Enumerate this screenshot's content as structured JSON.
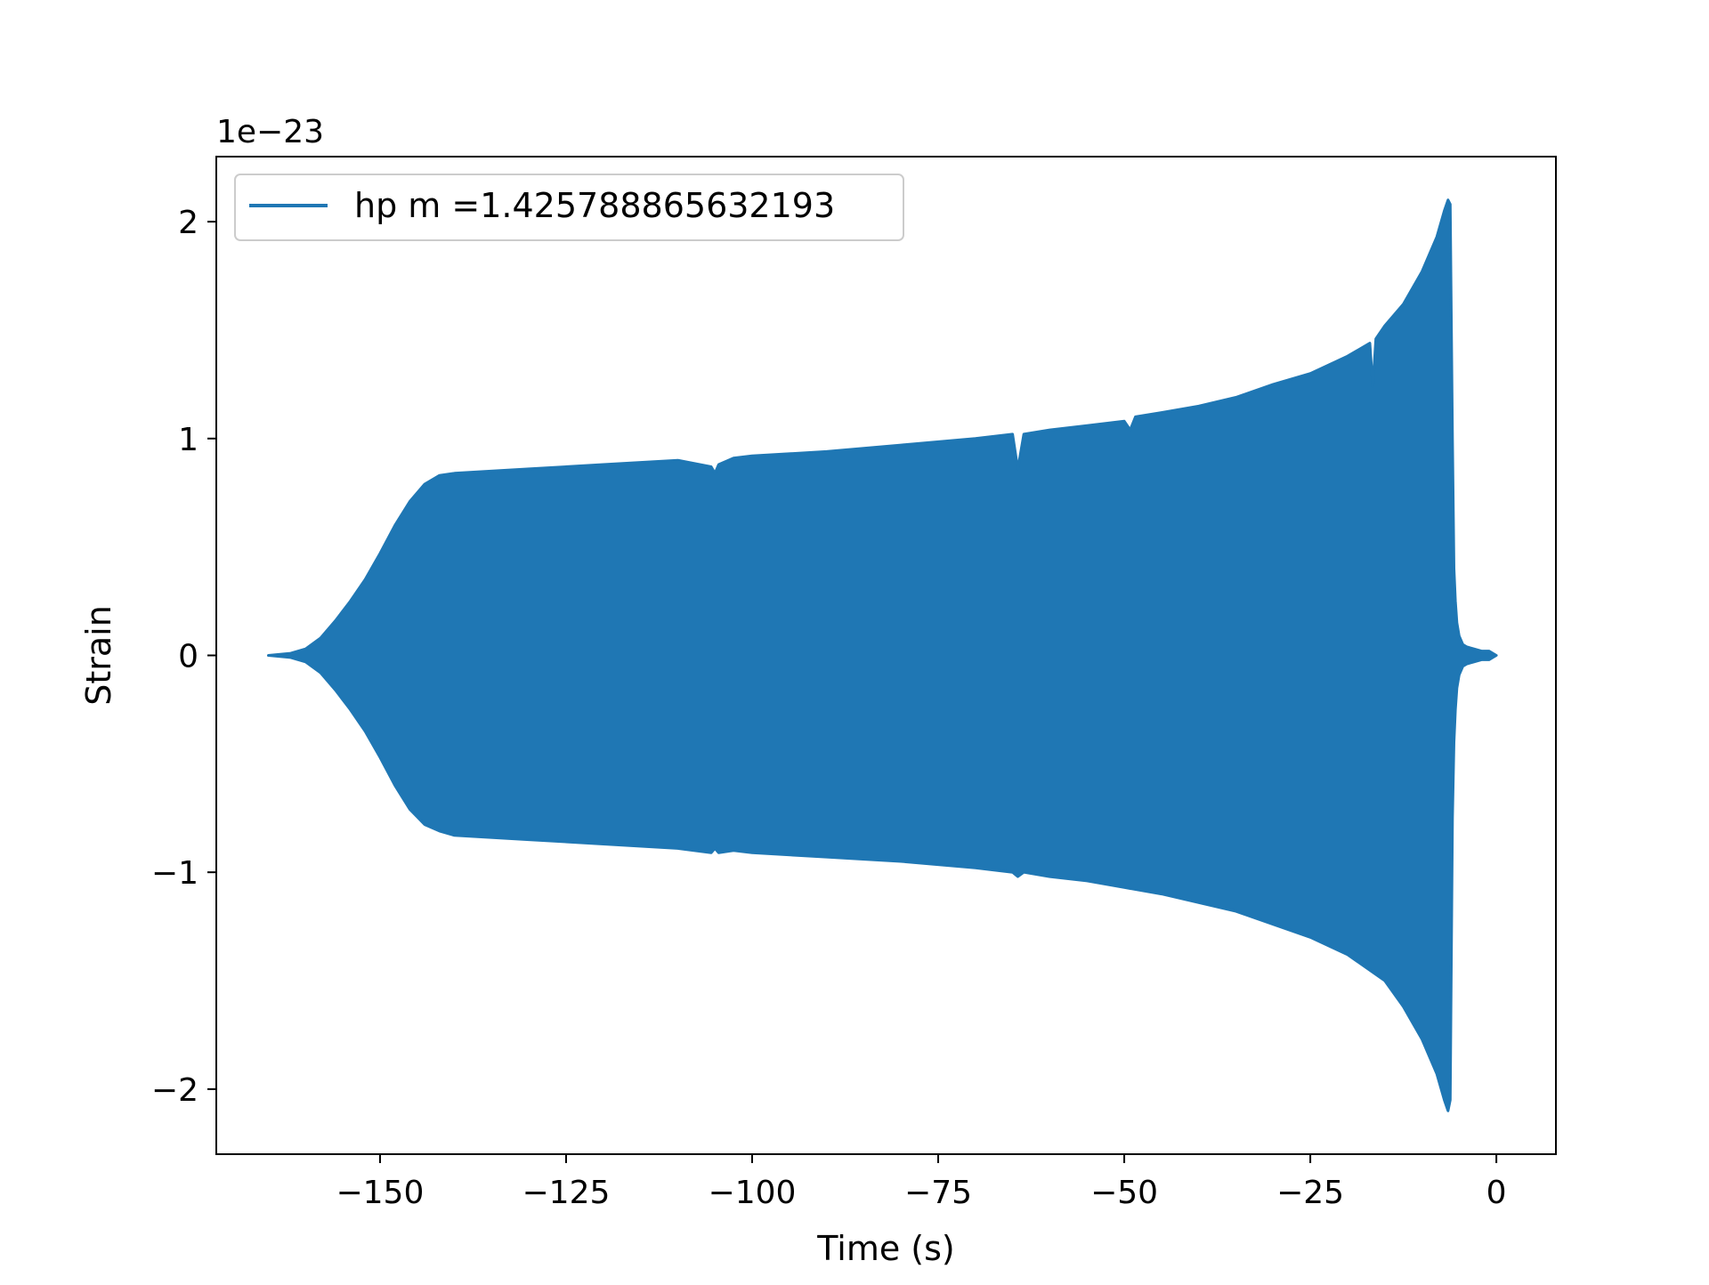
{
  "chart_data": {
    "type": "line",
    "title": "",
    "xlabel": "Time (s)",
    "ylabel": "Strain",
    "y_offset_text": "1e−23",
    "xlim": [
      -172.0,
      8.0
    ],
    "ylim": [
      -2.3,
      2.3
    ],
    "x_ticks": [
      -150,
      -125,
      -100,
      -75,
      -50,
      -25,
      0
    ],
    "x_tick_labels": [
      "−150",
      "−125",
      "−100",
      "−75",
      "−50",
      "−25",
      "0"
    ],
    "y_ticks": [
      -2,
      -1,
      0,
      1,
      2
    ],
    "y_tick_labels": [
      "−2",
      "−1",
      "0",
      "1",
      "2"
    ],
    "grid": false,
    "legend_position": "upper-left",
    "series": [
      {
        "name": "hp m =1.425788865632193",
        "color": "#1f77b4",
        "envelope_upper": {
          "x": [
            -165.0,
            -162.0,
            -160.0,
            -158.0,
            -156.0,
            -154.0,
            -152.0,
            -150.0,
            -148.0,
            -146.0,
            -144.0,
            -142.0,
            -140.0,
            -130.0,
            -120.0,
            -110.0,
            -105.5,
            -105.0,
            -104.5,
            -102.5,
            -100.0,
            -90.0,
            -80.0,
            -70.0,
            -65.0,
            -64.3,
            -63.5,
            -60.0,
            -55.0,
            -50.0,
            -49.2,
            -48.5,
            -45.0,
            -40.0,
            -35.0,
            -30.0,
            -25.0,
            -20.0,
            -17.0,
            -16.6,
            -16.2,
            -15.0,
            -12.5,
            -10.0,
            -8.0,
            -7.0,
            -6.5,
            -6.2,
            -5.9,
            -5.7,
            -5.5,
            -5.3,
            -5.0,
            -4.5,
            -4.0,
            -3.0,
            -2.0,
            -1.0,
            0.0
          ],
          "y": [
            0.0,
            0.01,
            0.03,
            0.08,
            0.16,
            0.25,
            0.35,
            0.47,
            0.6,
            0.71,
            0.79,
            0.83,
            0.84,
            0.86,
            0.88,
            0.9,
            0.87,
            0.84,
            0.88,
            0.91,
            0.92,
            0.94,
            0.97,
            1.0,
            1.02,
            0.86,
            1.02,
            1.04,
            1.06,
            1.08,
            1.04,
            1.1,
            1.12,
            1.15,
            1.19,
            1.25,
            1.3,
            1.38,
            1.44,
            1.24,
            1.46,
            1.52,
            1.62,
            1.77,
            1.93,
            2.05,
            2.1,
            2.08,
            1.0,
            0.4,
            0.25,
            0.15,
            0.09,
            0.05,
            0.04,
            0.03,
            0.02,
            0.02,
            0.0
          ]
        },
        "envelope_lower": {
          "x": [
            -165.0,
            -162.0,
            -160.0,
            -158.0,
            -156.0,
            -154.0,
            -152.0,
            -150.0,
            -148.0,
            -146.0,
            -144.0,
            -142.0,
            -140.0,
            -130.0,
            -120.0,
            -110.0,
            -105.5,
            -105.0,
            -104.5,
            -102.5,
            -100.0,
            -90.0,
            -80.0,
            -70.0,
            -65.0,
            -64.3,
            -63.5,
            -60.0,
            -55.0,
            -50.0,
            -45.0,
            -40.0,
            -35.0,
            -30.0,
            -25.0,
            -20.0,
            -15.0,
            -12.5,
            -10.0,
            -8.0,
            -7.0,
            -6.5,
            -6.2,
            -5.9,
            -5.7,
            -5.5,
            -5.3,
            -5.0,
            -4.5,
            -4.0,
            -3.0,
            -2.0,
            -1.0,
            0.0
          ],
          "y": [
            0.0,
            -0.01,
            -0.03,
            -0.08,
            -0.16,
            -0.25,
            -0.35,
            -0.47,
            -0.6,
            -0.71,
            -0.78,
            -0.81,
            -0.83,
            -0.85,
            -0.87,
            -0.89,
            -0.91,
            -0.89,
            -0.91,
            -0.9,
            -0.91,
            -0.93,
            -0.95,
            -0.98,
            -1.0,
            -1.02,
            -1.0,
            -1.02,
            -1.04,
            -1.07,
            -1.1,
            -1.14,
            -1.18,
            -1.24,
            -1.3,
            -1.38,
            -1.5,
            -1.62,
            -1.77,
            -1.93,
            -2.05,
            -2.1,
            -2.05,
            -0.75,
            -0.4,
            -0.25,
            -0.15,
            -0.09,
            -0.05,
            -0.04,
            -0.03,
            -0.02,
            -0.02,
            0.0
          ]
        }
      }
    ]
  }
}
